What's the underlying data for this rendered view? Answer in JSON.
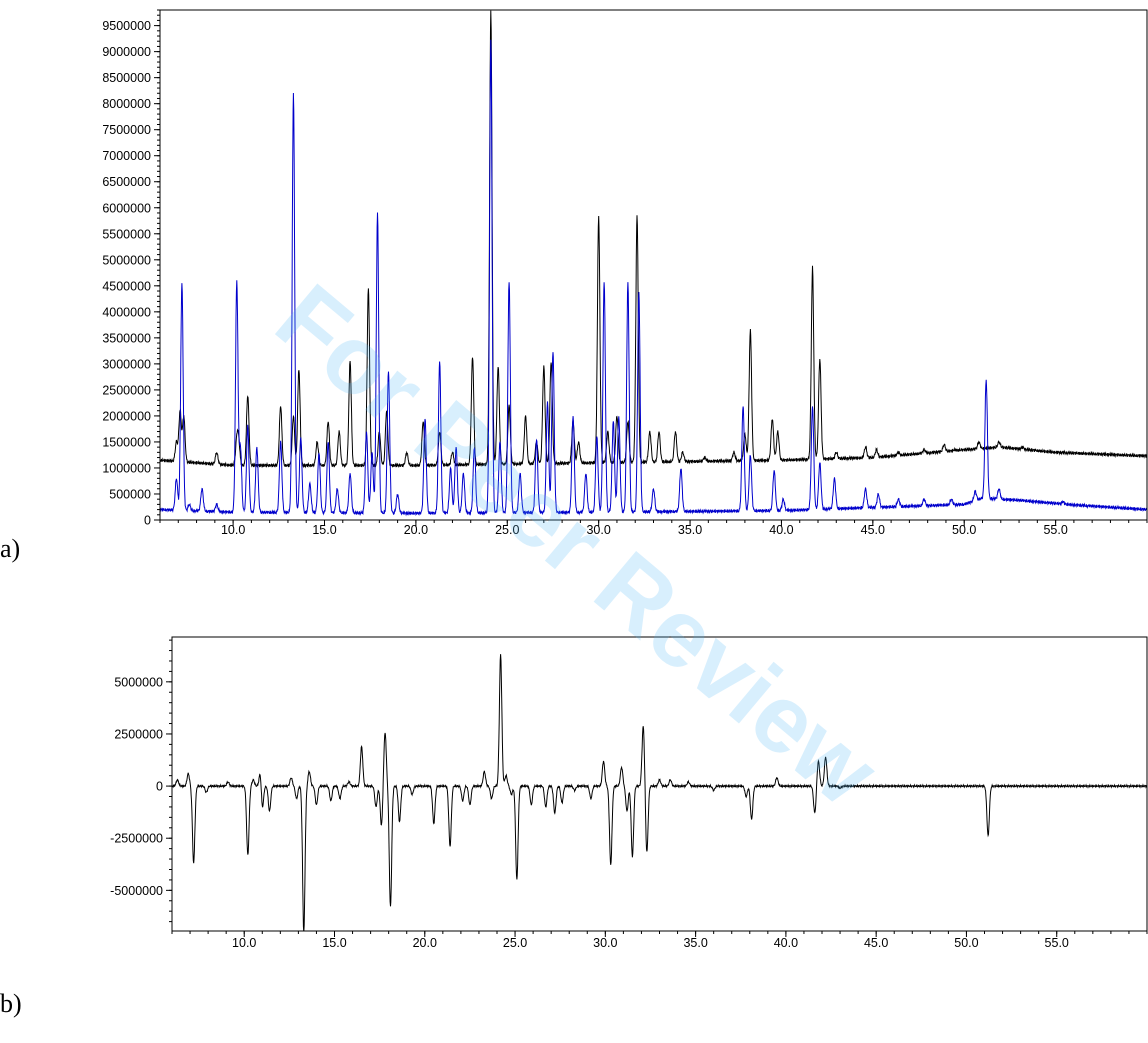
{
  "panels": {
    "a_label": "a)",
    "b_label": "b)"
  },
  "watermark": {
    "text": "For Peer Review"
  },
  "colors": {
    "series1": "#000000",
    "series2": "#0000cc",
    "watermark": "#4fb6f5"
  },
  "chart_data": [
    {
      "type": "line",
      "title": "",
      "xlabel": "",
      "ylabel": "",
      "xlim": [
        6,
        60
      ],
      "ylim": [
        0,
        9800000
      ],
      "xticks": [
        10.0,
        15.0,
        20.0,
        25.0,
        30.0,
        35.0,
        40.0,
        45.0,
        50.0,
        55.0
      ],
      "xtick_labels": [
        "10.0",
        "15.0",
        "20.0",
        "25.0",
        "30.0",
        "35.0",
        "40.0",
        "45.0",
        "50.0",
        "55.0"
      ],
      "yticks": [
        0,
        500000,
        1000000,
        1500000,
        2000000,
        2500000,
        3000000,
        3500000,
        4000000,
        4500000,
        5000000,
        5500000,
        6000000,
        6500000,
        7000000,
        7500000,
        8000000,
        8500000,
        9000000,
        9500000
      ],
      "ytick_labels": [
        "0",
        "500000",
        "1000000",
        "1500000",
        "2000000",
        "2500000",
        "3000000",
        "3500000",
        "4000000",
        "4500000",
        "5000000",
        "5500000",
        "6000000",
        "6500000",
        "7000000",
        "7500000",
        "8000000",
        "8500000",
        "9000000",
        "9500000"
      ],
      "grid": false,
      "series": [
        {
          "color": "#000000",
          "baseline": [
            [
              6,
              1150000
            ],
            [
              10,
              1050000
            ],
            [
              20,
              1050000
            ],
            [
              30,
              1100000
            ],
            [
              40,
              1150000
            ],
            [
              45,
              1200000
            ],
            [
              50,
              1350000
            ],
            [
              52,
              1400000
            ],
            [
              55,
              1300000
            ],
            [
              60,
              1230000
            ]
          ],
          "peaks": [
            [
              6.9,
              1500000
            ],
            [
              7.1,
              2100000
            ],
            [
              7.3,
              2000000
            ],
            [
              9.1,
              1300000
            ],
            [
              10.2,
              1500000
            ],
            [
              10.3,
              1500000
            ],
            [
              10.8,
              2400000
            ],
            [
              12.6,
              2200000
            ],
            [
              13.3,
              2000000
            ],
            [
              13.6,
              2900000
            ],
            [
              14.6,
              1500000
            ],
            [
              15.2,
              1900000
            ],
            [
              15.8,
              1700000
            ],
            [
              16.4,
              3050000
            ],
            [
              17.4,
              4450000
            ],
            [
              18.0,
              1700000
            ],
            [
              18.4,
              2100000
            ],
            [
              19.5,
              1300000
            ],
            [
              20.4,
              1900000
            ],
            [
              21.3,
              1700000
            ],
            [
              22.0,
              1300000
            ],
            [
              23.1,
              3150000
            ],
            [
              24.1,
              9800000
            ],
            [
              24.5,
              2950000
            ],
            [
              25.1,
              2200000
            ],
            [
              26.0,
              2000000
            ],
            [
              26.6,
              1500000
            ],
            [
              27.0,
              2950000
            ],
            [
              27.4,
              3050000
            ],
            [
              28.6,
              1900000
            ],
            [
              28.9,
              1500000
            ],
            [
              30.0,
              5850000
            ],
            [
              30.5,
              1700000
            ],
            [
              31.0,
              2000000
            ],
            [
              31.6,
              1900000
            ],
            [
              32.1,
              5850000
            ],
            [
              32.8,
              1700000
            ],
            [
              33.3,
              1700000
            ],
            [
              34.2,
              1700000
            ],
            [
              34.6,
              1300000
            ],
            [
              35.8,
              1200000
            ],
            [
              37.4,
              1300000
            ],
            [
              38.0,
              1650000
            ],
            [
              38.3,
              3650000
            ],
            [
              39.5,
              1950000
            ],
            [
              39.8,
              1700000
            ],
            [
              41.7,
              4850000
            ],
            [
              42.1,
              3100000
            ],
            [
              43.0,
              1300000
            ],
            [
              44.6,
              1400000
            ],
            [
              45.2,
              1350000
            ],
            [
              46.4,
              1300000
            ],
            [
              47.8,
              1350000
            ],
            [
              48.9,
              1450000
            ],
            [
              49.5,
              1350000
            ],
            [
              50.8,
              1500000
            ],
            [
              51.9,
              1500000
            ],
            [
              53.2,
              1400000
            ]
          ]
        },
        {
          "color": "#0000cc",
          "baseline": [
            [
              6,
              200000
            ],
            [
              10,
              150000
            ],
            [
              20,
              130000
            ],
            [
              30,
              150000
            ],
            [
              40,
              180000
            ],
            [
              45,
              240000
            ],
            [
              50,
              300000
            ],
            [
              51,
              420000
            ],
            [
              53,
              380000
            ],
            [
              56,
              290000
            ],
            [
              60,
              200000
            ]
          ],
          "peaks": [
            [
              6.9,
              800000
            ],
            [
              7.2,
              4550000
            ],
            [
              7.6,
              300000
            ],
            [
              8.3,
              600000
            ],
            [
              9.1,
              300000
            ],
            [
              10.2,
              4600000
            ],
            [
              10.4,
              1400000
            ],
            [
              10.8,
              1800000
            ],
            [
              11.3,
              1400000
            ],
            [
              12.6,
              1500000
            ],
            [
              13.3,
              8200000
            ],
            [
              13.7,
              1600000
            ],
            [
              14.2,
              700000
            ],
            [
              14.7,
              1300000
            ],
            [
              15.2,
              1500000
            ],
            [
              15.7,
              600000
            ],
            [
              16.4,
              900000
            ],
            [
              17.3,
              1700000
            ],
            [
              17.6,
              1300000
            ],
            [
              17.9,
              5900000
            ],
            [
              18.5,
              2850000
            ],
            [
              19.0,
              500000
            ],
            [
              20.5,
              1950000
            ],
            [
              21.3,
              3050000
            ],
            [
              21.9,
              1000000
            ],
            [
              22.2,
              1400000
            ],
            [
              22.6,
              900000
            ],
            [
              23.2,
              1400000
            ],
            [
              24.1,
              9250000
            ],
            [
              24.6,
              1500000
            ],
            [
              25.1,
              4600000
            ],
            [
              25.7,
              900000
            ],
            [
              26.6,
              1550000
            ],
            [
              27.2,
              2250000
            ],
            [
              27.5,
              3250000
            ],
            [
              28.6,
              2000000
            ],
            [
              29.3,
              900000
            ],
            [
              29.9,
              1600000
            ],
            [
              30.3,
              4600000
            ],
            [
              30.8,
              1900000
            ],
            [
              31.1,
              2000000
            ],
            [
              31.6,
              4550000
            ],
            [
              32.2,
              4400000
            ],
            [
              33.0,
              600000
            ],
            [
              34.5,
              1000000
            ],
            [
              37.9,
              2200000
            ],
            [
              38.3,
              1250000
            ],
            [
              39.6,
              950000
            ],
            [
              40.1,
              400000
            ],
            [
              41.7,
              2200000
            ],
            [
              42.1,
              1100000
            ],
            [
              42.9,
              800000
            ],
            [
              44.6,
              600000
            ],
            [
              45.3,
              500000
            ],
            [
              46.4,
              400000
            ],
            [
              47.8,
              400000
            ],
            [
              49.3,
              400000
            ],
            [
              50.6,
              550000
            ],
            [
              51.2,
              2700000
            ],
            [
              51.9,
              600000
            ],
            [
              55.4,
              350000
            ]
          ]
        }
      ]
    },
    {
      "type": "line",
      "title": "",
      "xlabel": "",
      "ylabel": "",
      "xlim": [
        6,
        60
      ],
      "ylim": [
        -6950000,
        7150000
      ],
      "xticks": [
        10.0,
        15.0,
        20.0,
        25.0,
        30.0,
        35.0,
        40.0,
        45.0,
        50.0,
        55.0
      ],
      "xtick_labels": [
        "10.0",
        "15.0",
        "20.0",
        "25.0",
        "30.0",
        "35.0",
        "40.0",
        "45.0",
        "50.0",
        "55.0"
      ],
      "yticks": [
        -5000000,
        -2500000,
        0,
        2500000,
        5000000
      ],
      "ytick_labels": [
        "-5000000",
        "-2500000",
        "0",
        "2500000",
        "5000000"
      ],
      "grid": false,
      "series": [
        {
          "color": "#000000",
          "baseline": [
            [
              6,
              0
            ],
            [
              60,
              0
            ]
          ],
          "peaks": [
            [
              6.3,
              300000
            ],
            [
              6.9,
              600000
            ],
            [
              7.2,
              -3700000
            ],
            [
              7.9,
              -300000
            ],
            [
              9.1,
              200000
            ],
            [
              10.2,
              -3300000
            ],
            [
              10.5,
              300000
            ],
            [
              10.9,
              800000
            ],
            [
              11.0,
              -1200000
            ],
            [
              11.4,
              -1200000
            ],
            [
              12.6,
              400000
            ],
            [
              12.9,
              -600000
            ],
            [
              13.3,
              -7000000
            ],
            [
              13.6,
              700000
            ],
            [
              14.0,
              -900000
            ],
            [
              14.8,
              -700000
            ],
            [
              15.3,
              -600000
            ],
            [
              15.8,
              200000
            ],
            [
              16.5,
              1900000
            ],
            [
              17.3,
              -1000000
            ],
            [
              17.6,
              -1900000
            ],
            [
              17.8,
              2600000
            ],
            [
              18.1,
              -5800000
            ],
            [
              18.6,
              -1700000
            ],
            [
              19.3,
              -400000
            ],
            [
              20.5,
              -1800000
            ],
            [
              21.4,
              -2900000
            ],
            [
              22.1,
              -700000
            ],
            [
              22.5,
              -900000
            ],
            [
              23.3,
              700000
            ],
            [
              23.7,
              -600000
            ],
            [
              24.2,
              6300000
            ],
            [
              24.5,
              500000
            ],
            [
              24.8,
              -400000
            ],
            [
              25.1,
              -4500000
            ],
            [
              25.9,
              -900000
            ],
            [
              26.7,
              -1000000
            ],
            [
              27.2,
              -1300000
            ],
            [
              27.6,
              -800000
            ],
            [
              28.3,
              -200000
            ],
            [
              29.2,
              -600000
            ],
            [
              29.9,
              1200000
            ],
            [
              30.3,
              -3800000
            ],
            [
              30.9,
              900000
            ],
            [
              31.2,
              -1200000
            ],
            [
              31.5,
              -3400000
            ],
            [
              32.1,
              2900000
            ],
            [
              32.3,
              -3200000
            ],
            [
              33.0,
              300000
            ],
            [
              33.6,
              300000
            ],
            [
              34.6,
              200000
            ],
            [
              36.0,
              -200000
            ],
            [
              37.8,
              -500000
            ],
            [
              38.1,
              -1600000
            ],
            [
              39.5,
              400000
            ],
            [
              41.6,
              -1300000
            ],
            [
              41.8,
              1200000
            ],
            [
              42.2,
              1400000
            ],
            [
              43.0,
              -100000
            ],
            [
              51.2,
              -2400000
            ]
          ]
        }
      ]
    }
  ]
}
